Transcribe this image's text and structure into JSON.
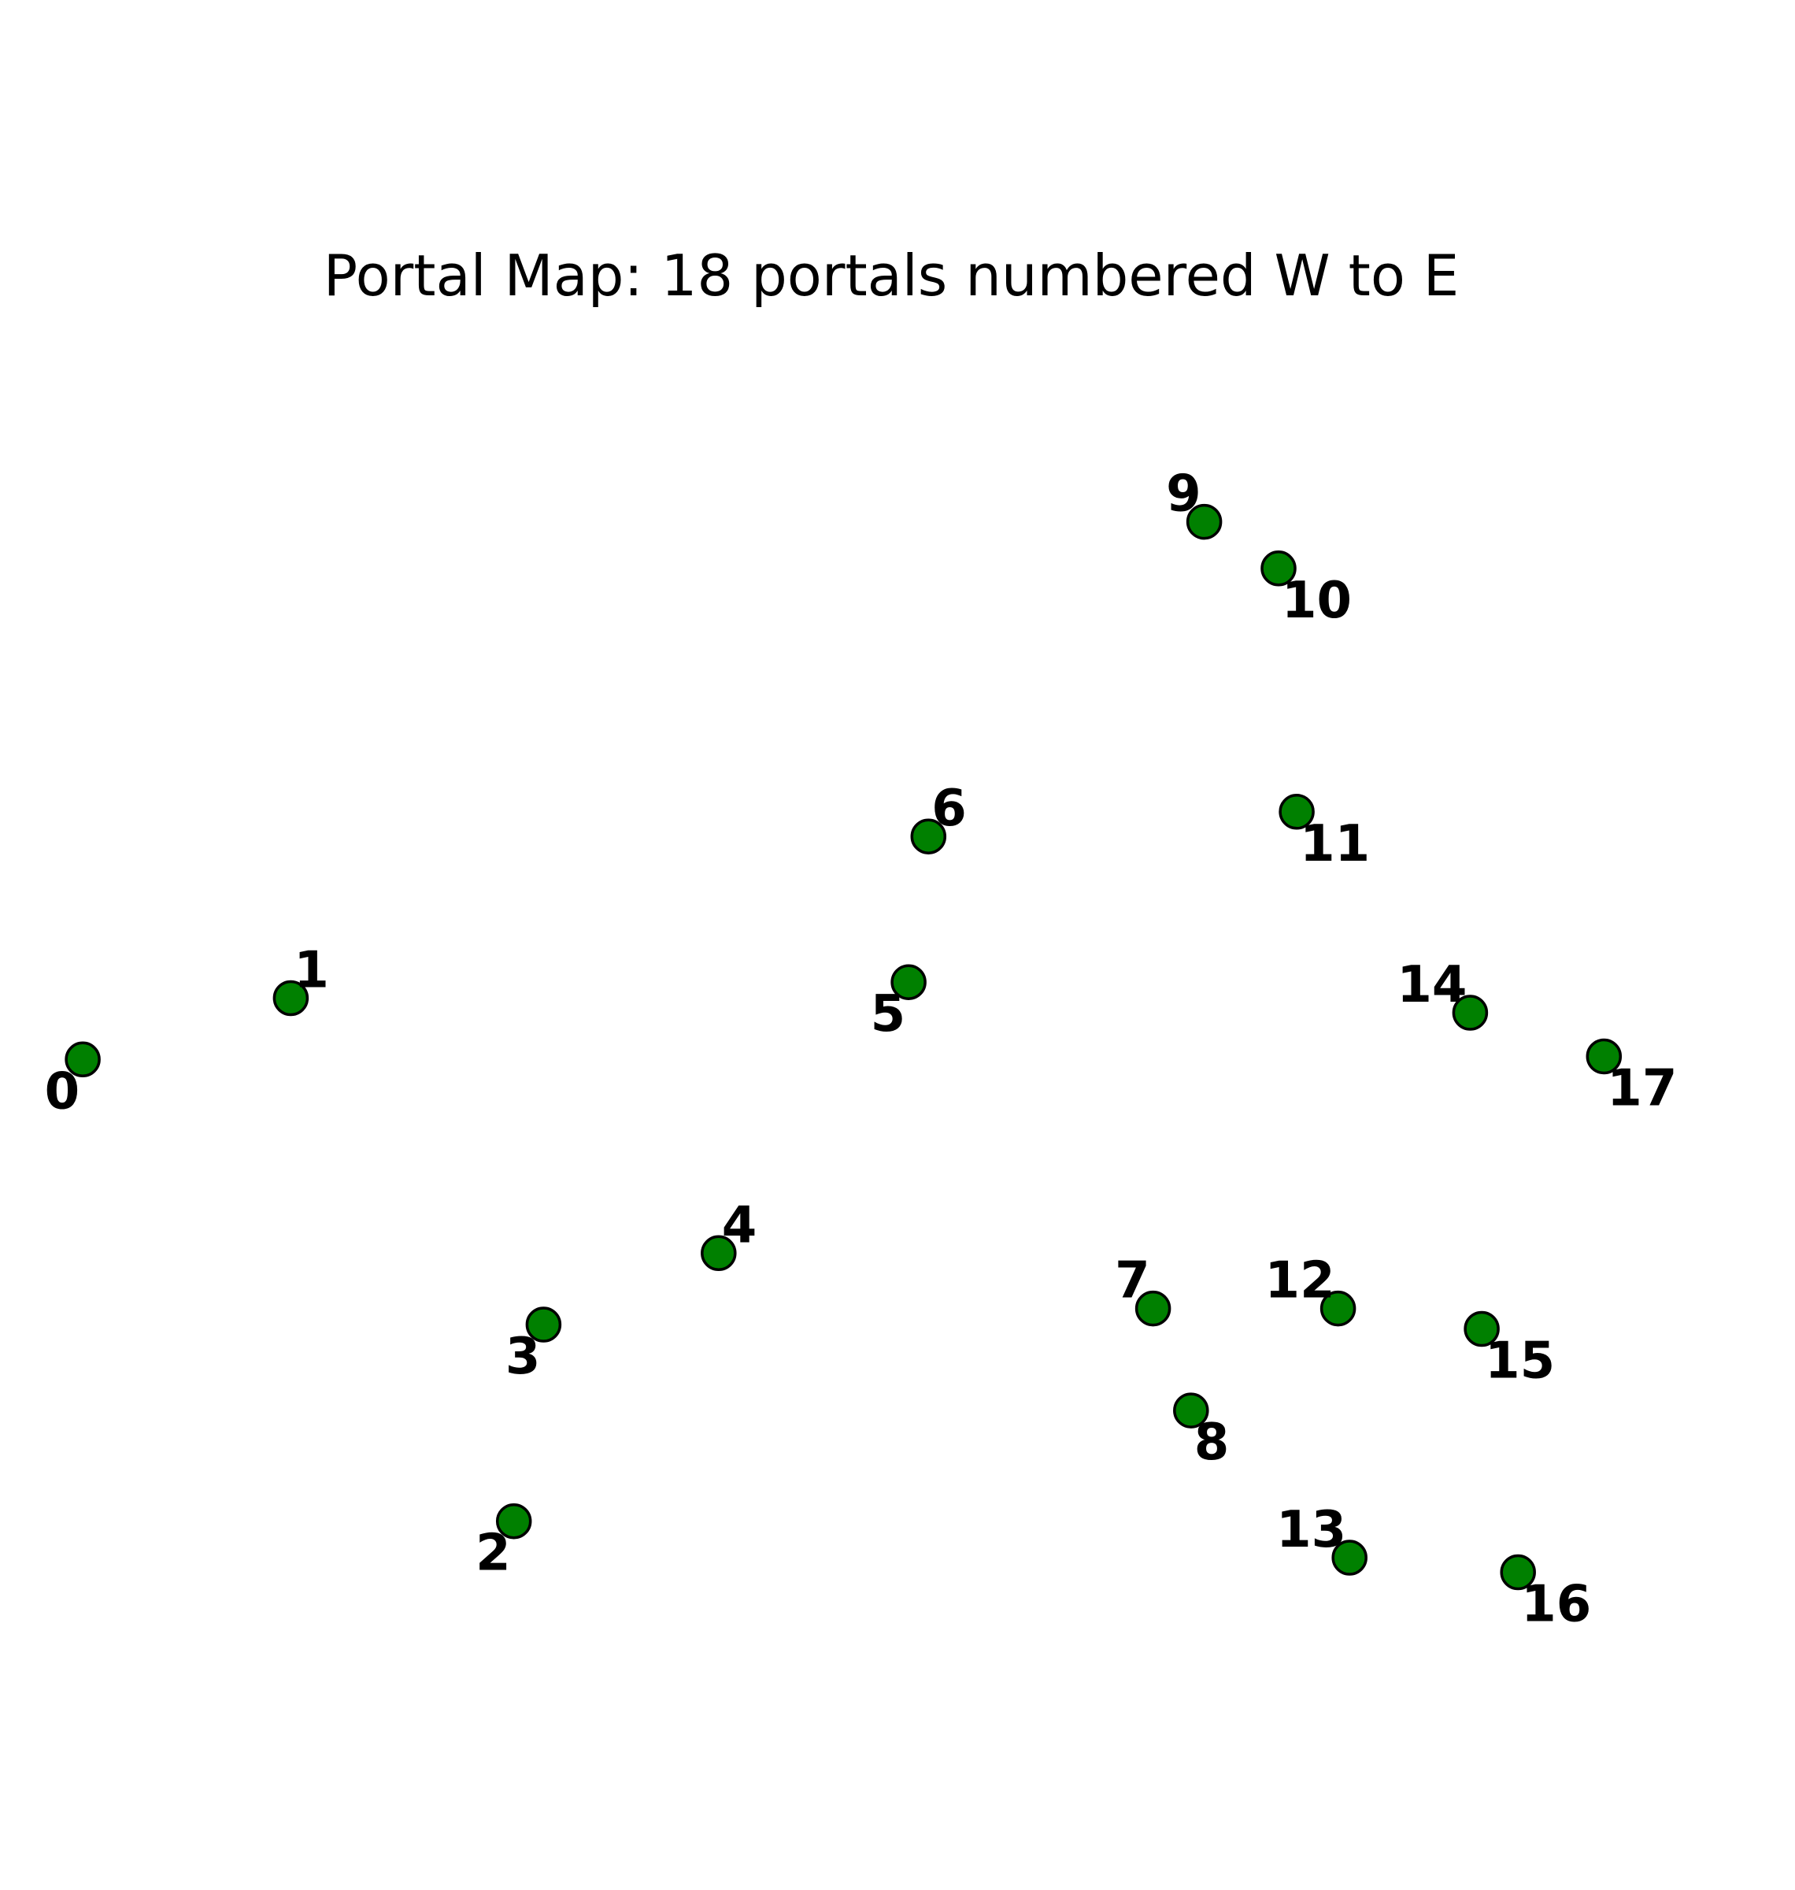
{
  "title": "Portal Map: 18 portals numbered W to E",
  "marker_color": "#008000",
  "marker_edge_color": "#000000",
  "chart_data": {
    "type": "scatter",
    "title": "Portal Map: 18 portals numbered W to E",
    "xlabel": "",
    "ylabel": "",
    "axes_visible": false,
    "grid": false,
    "xlim": [
      0,
      100
    ],
    "ylim": [
      0,
      100
    ],
    "points": [
      {
        "label": "0",
        "x": 1.1,
        "y": 43.5,
        "label_pos": "below-left"
      },
      {
        "label": "1",
        "x": 13.7,
        "y": 47.7,
        "label_pos": "above-right"
      },
      {
        "label": "2",
        "x": 27.2,
        "y": 11.8,
        "label_pos": "below-left"
      },
      {
        "label": "3",
        "x": 29.0,
        "y": 25.3,
        "label_pos": "below-left"
      },
      {
        "label": "4",
        "x": 39.6,
        "y": 30.2,
        "label_pos": "above-right"
      },
      {
        "label": "5",
        "x": 51.1,
        "y": 48.8,
        "label_pos": "below-left"
      },
      {
        "label": "6",
        "x": 52.3,
        "y": 58.8,
        "label_pos": "above-right"
      },
      {
        "label": "7",
        "x": 65.9,
        "y": 26.4,
        "label_pos": "above-left"
      },
      {
        "label": "8",
        "x": 68.2,
        "y": 19.4,
        "label_pos": "below-right"
      },
      {
        "label": "9",
        "x": 69.0,
        "y": 80.4,
        "label_pos": "above-left"
      },
      {
        "label": "10",
        "x": 73.5,
        "y": 77.2,
        "label_pos": "below-right"
      },
      {
        "label": "11",
        "x": 74.6,
        "y": 60.5,
        "label_pos": "below-right"
      },
      {
        "label": "12",
        "x": 77.1,
        "y": 26.4,
        "label_pos": "above-left"
      },
      {
        "label": "13",
        "x": 77.8,
        "y": 9.3,
        "label_pos": "above-left"
      },
      {
        "label": "14",
        "x": 85.1,
        "y": 46.7,
        "label_pos": "above-left"
      },
      {
        "label": "15",
        "x": 85.8,
        "y": 25.0,
        "label_pos": "below-right"
      },
      {
        "label": "16",
        "x": 88.0,
        "y": 8.3,
        "label_pos": "below-right"
      },
      {
        "label": "17",
        "x": 93.2,
        "y": 43.7,
        "label_pos": "below-right"
      }
    ]
  }
}
